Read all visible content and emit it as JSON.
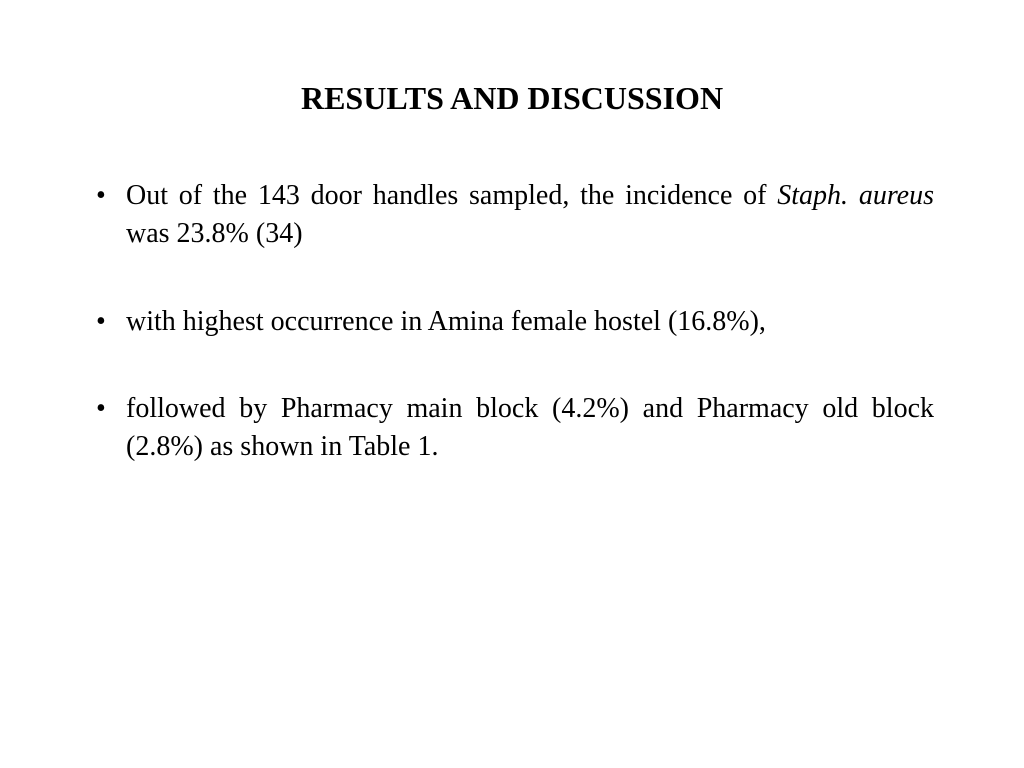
{
  "slide": {
    "title": "RESULTS AND DISCUSSION",
    "bullets": [
      {
        "pre": "Out of the 143 door handles sampled, the incidence of ",
        "italic": "Staph. aureus",
        "post": " was 23.8% (34)"
      },
      {
        "pre": "with highest occurrence in Amina female hostel (16.8%),",
        "italic": "",
        "post": ""
      },
      {
        "pre": "followed by Pharmacy main block (4.2%) and Pharmacy old block (2.8%) as shown in Table 1.",
        "italic": "",
        "post": ""
      }
    ],
    "background_color": "#ffffff",
    "text_color": "#000000",
    "title_fontsize": 32,
    "body_fontsize": 28,
    "font_family": "Times New Roman"
  }
}
